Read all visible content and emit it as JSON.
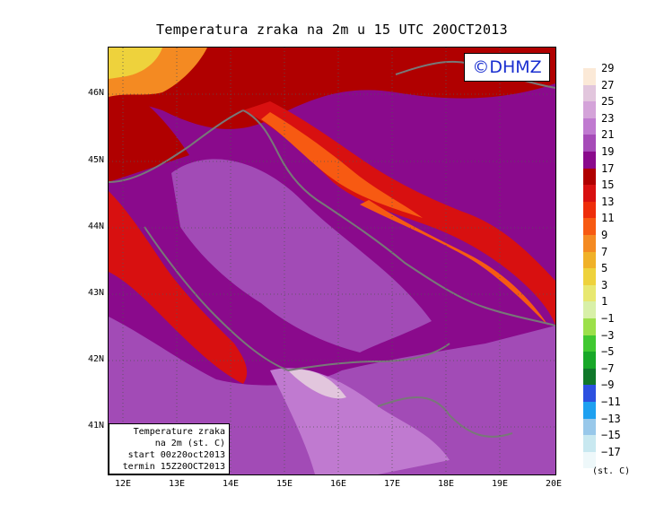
{
  "title": "Temperatura zraka na 2m u 15 UTC 20OCT2013",
  "badge": "©DHMZ",
  "infobox": {
    "line1": "Temperature zraka",
    "line2": "na 2m (st. C)",
    "line3": "start 00z20oct2013",
    "line4": "termin 15Z20OCT2013"
  },
  "axes": {
    "lat_labels": [
      "46N",
      "45N",
      "44N",
      "43N",
      "42N",
      "41N"
    ],
    "lon_labels": [
      "12E",
      "13E",
      "14E",
      "15E",
      "16E",
      "17E",
      "18E",
      "19E",
      "20E"
    ],
    "lat_range": [
      40.3,
      46.7
    ],
    "lon_range": [
      11.7,
      20.0
    ],
    "grid": "dotted"
  },
  "legend": {
    "unit": "(st. C)",
    "levels": [
      "29",
      "27",
      "25",
      "23",
      "21",
      "19",
      "17",
      "15",
      "13",
      "11",
      "9",
      "7",
      "5",
      "3",
      "1",
      "−1",
      "−3",
      "−5",
      "−7",
      "−9",
      "−11",
      "−13",
      "−15",
      "−17"
    ],
    "colors": [
      "#fbe9d7",
      "#e2c6dd",
      "#d4a3d9",
      "#c07ad0",
      "#a64bb8",
      "#8a0a8c",
      "#b00000",
      "#d81010",
      "#ee2d0a",
      "#f75a12",
      "#f48a22",
      "#f0b128",
      "#eed23c",
      "#e8e870",
      "#d8f0a8",
      "#9ce04a",
      "#40c830",
      "#18a828",
      "#10782a",
      "#2c50e0",
      "#1ea0f0",
      "#98c8ea",
      "#c8e8f0",
      "#eef8fa"
    ]
  },
  "field_colors": {
    "sea": "#a24bb6",
    "land_warm": "#b00000",
    "alpine": "#e8c030",
    "coast_line": "#787878"
  }
}
